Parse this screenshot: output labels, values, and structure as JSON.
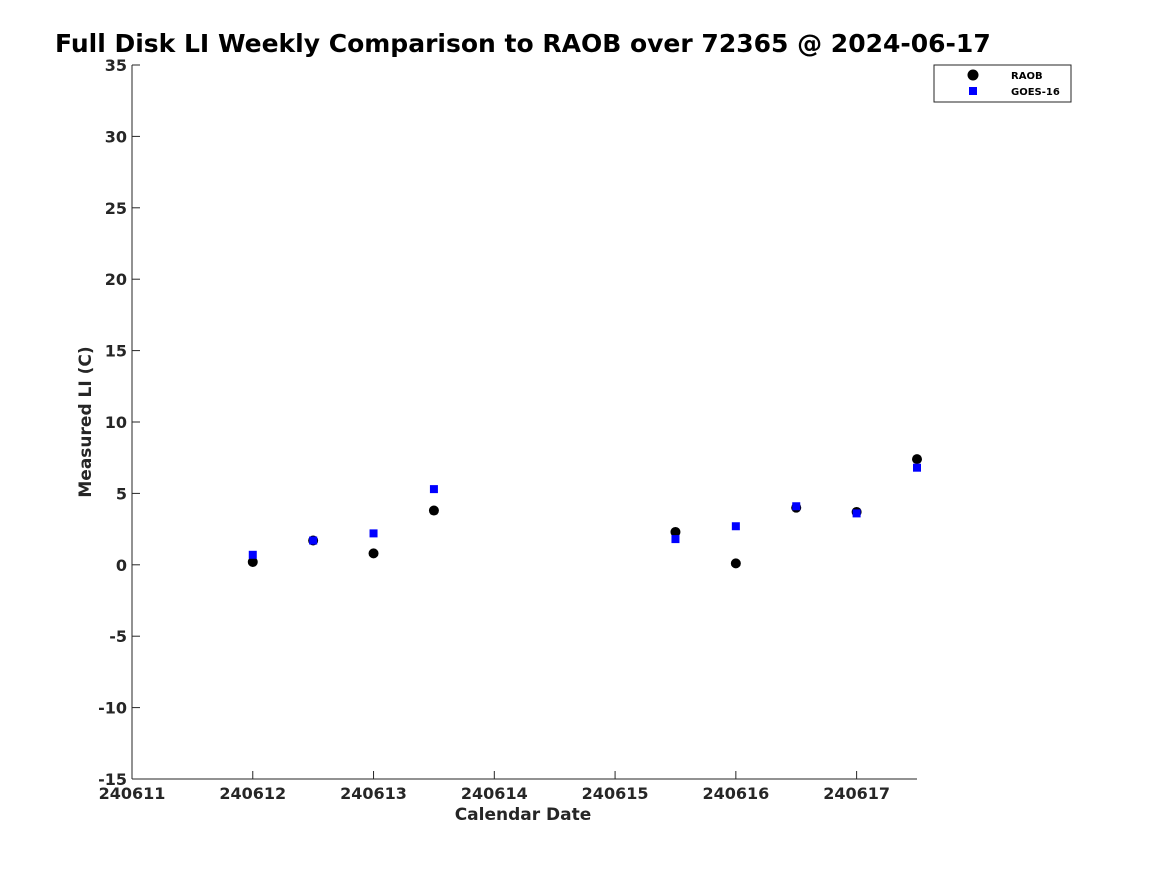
{
  "chart_data": {
    "type": "scatter",
    "title": "Full Disk LI Weekly Comparison to RAOB over 72365 @ 2024-06-17",
    "xlabel": "Calendar Date",
    "ylabel": "Measured LI (C)",
    "xlim": [
      240611,
      240617.5
    ],
    "ylim": [
      -15,
      35
    ],
    "x_ticks": [
      240611,
      240612,
      240613,
      240614,
      240615,
      240616,
      240617
    ],
    "x_tick_labels": [
      "240611",
      "240612",
      "240613",
      "240614",
      "240615",
      "240616",
      "240617"
    ],
    "y_ticks": [
      -15,
      -10,
      -5,
      0,
      5,
      10,
      15,
      20,
      25,
      30,
      35
    ],
    "y_tick_labels": [
      "-15",
      "-10",
      "-5",
      "0",
      "5",
      "10",
      "15",
      "20",
      "25",
      "30",
      "35"
    ],
    "grid": false,
    "legend_position": "top-right",
    "series": [
      {
        "name": "RAOB",
        "marker": "circle",
        "color": "#000000",
        "points": [
          {
            "x": 240612.0,
            "y": 0.2
          },
          {
            "x": 240612.5,
            "y": 1.7
          },
          {
            "x": 240613.0,
            "y": 0.8
          },
          {
            "x": 240613.5,
            "y": 3.8
          },
          {
            "x": 240615.5,
            "y": 2.3
          },
          {
            "x": 240616.0,
            "y": 0.1
          },
          {
            "x": 240616.5,
            "y": 4.0
          },
          {
            "x": 240617.0,
            "y": 3.7
          },
          {
            "x": 240617.5,
            "y": 7.4
          }
        ]
      },
      {
        "name": "GOES-16",
        "marker": "square",
        "color": "#0000ff",
        "points": [
          {
            "x": 240612.0,
            "y": 0.7
          },
          {
            "x": 240612.5,
            "y": 1.7
          },
          {
            "x": 240613.0,
            "y": 2.2
          },
          {
            "x": 240613.5,
            "y": 5.3
          },
          {
            "x": 240615.5,
            "y": 1.8
          },
          {
            "x": 240616.0,
            "y": 2.7
          },
          {
            "x": 240616.5,
            "y": 4.1
          },
          {
            "x": 240617.0,
            "y": 3.6
          },
          {
            "x": 240617.5,
            "y": 6.8
          }
        ]
      }
    ]
  }
}
